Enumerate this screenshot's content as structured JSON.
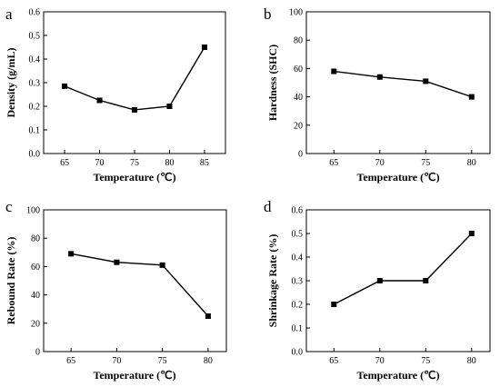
{
  "chart_data": [
    {
      "panel": "a",
      "type": "line",
      "x": [
        65,
        70,
        75,
        80,
        85
      ],
      "values": [
        0.285,
        0.225,
        0.185,
        0.2,
        0.45
      ],
      "xlabel": "Temperature (℃)",
      "ylabel": "Density (g/mL)",
      "xticks": [
        "65",
        "70",
        "75",
        "80",
        "85"
      ],
      "yticks": [
        "0.0",
        "0.1",
        "0.2",
        "0.3",
        "0.4",
        "0.5",
        "0.6"
      ],
      "ylim": [
        0,
        0.6
      ],
      "xlim": [
        62,
        88
      ],
      "grid": false
    },
    {
      "panel": "b",
      "type": "line",
      "x": [
        65,
        70,
        75,
        80
      ],
      "values": [
        58,
        54,
        51,
        40
      ],
      "xlabel": "Temperature (℃)",
      "ylabel": "Hardness (SHC)",
      "xticks": [
        "65",
        "70",
        "75",
        "80"
      ],
      "yticks": [
        "0",
        "20",
        "40",
        "60",
        "80",
        "100"
      ],
      "ylim": [
        0,
        100
      ],
      "xlim": [
        62,
        82
      ],
      "grid": false
    },
    {
      "panel": "c",
      "type": "line",
      "x": [
        65,
        70,
        75,
        80
      ],
      "values": [
        69,
        63,
        61,
        25
      ],
      "xlabel": "Temperature (℃)",
      "ylabel": "Rebound Rate (%)",
      "xticks": [
        "65",
        "70",
        "75",
        "80"
      ],
      "yticks": [
        "0",
        "20",
        "40",
        "60",
        "80",
        "100"
      ],
      "ylim": [
        0,
        100
      ],
      "xlim": [
        62,
        82
      ],
      "grid": false
    },
    {
      "panel": "d",
      "type": "line",
      "x": [
        65,
        70,
        75,
        80
      ],
      "values": [
        0.2,
        0.3,
        0.3,
        0.5
      ],
      "xlabel": "Temperature (℃)",
      "ylabel": "Shrinkage Rate (%)",
      "xticks": [
        "65",
        "70",
        "75",
        "80"
      ],
      "yticks": [
        "0.0",
        "0.1",
        "0.2",
        "0.3",
        "0.4",
        "0.5",
        "0.6"
      ],
      "ylim": [
        0,
        0.6
      ],
      "xlim": [
        62,
        82
      ],
      "grid": false
    }
  ]
}
